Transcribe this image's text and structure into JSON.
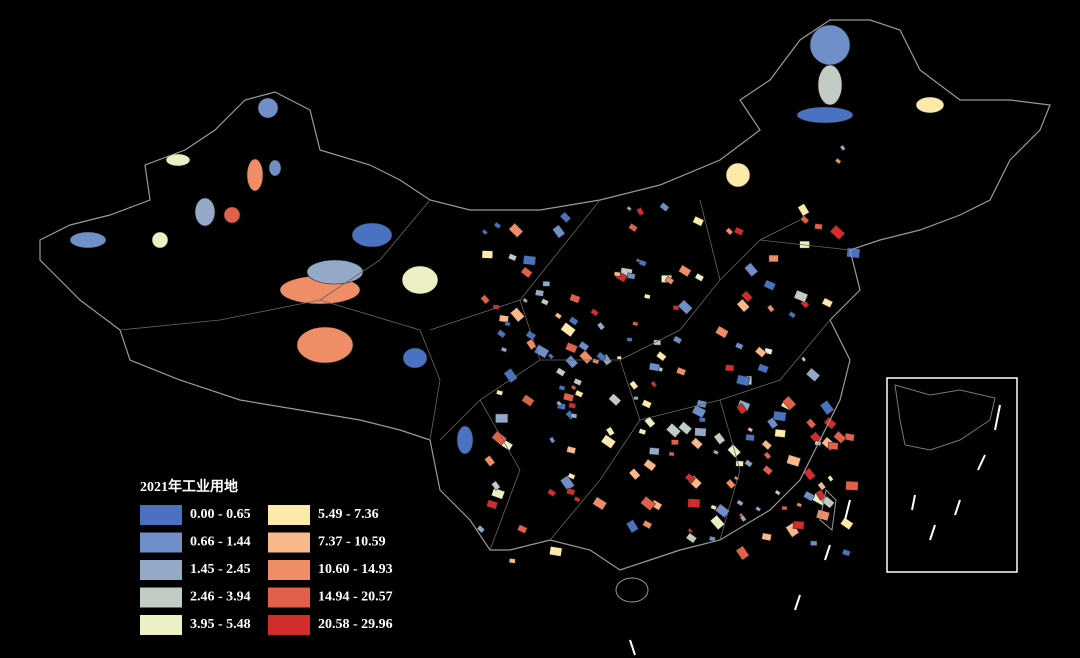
{
  "legend": {
    "title": "2021年工业用地",
    "items": [
      {
        "label": "0.00 - 0.65",
        "color": "#4a72c0"
      },
      {
        "label": "0.66 - 1.44",
        "color": "#6f8fc9"
      },
      {
        "label": "1.45 - 2.45",
        "color": "#94a9c7"
      },
      {
        "label": "2.46 - 3.94",
        "color": "#c3ccc4"
      },
      {
        "label": "3.95 - 5.48",
        "color": "#ecefc2"
      },
      {
        "label": "5.49 - 7.36",
        "color": "#fde9a8"
      },
      {
        "label": "7.37 - 10.59",
        "color": "#f7b88a"
      },
      {
        "label": "10.60 - 14.93",
        "color": "#ef8e66"
      },
      {
        "label": "14.94 - 20.57",
        "color": "#e2604a"
      },
      {
        "label": "20.58 - 29.96",
        "color": "#d22c2c"
      }
    ]
  }
}
